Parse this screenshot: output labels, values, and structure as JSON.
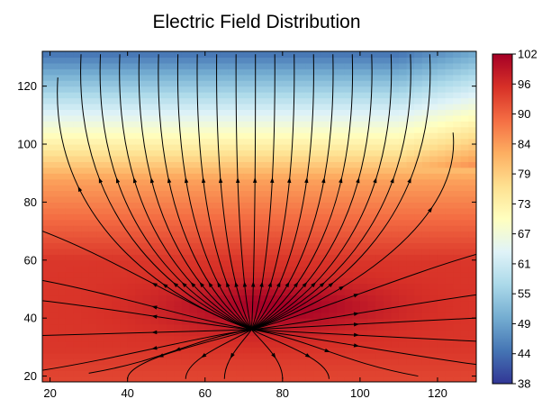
{
  "chart_data": {
    "type": "heatmap",
    "title": "Electric Field Distribution",
    "subtype": "contour-fill-with-streamlines",
    "xlim": [
      18,
      130
    ],
    "ylim": [
      18,
      132
    ],
    "x_ticks": [
      "20",
      "40",
      "60",
      "80",
      "100",
      "120"
    ],
    "y_ticks": [
      "20",
      "40",
      "60",
      "80",
      "100",
      "120"
    ],
    "colorbar": {
      "min": 38,
      "max": 102,
      "tick_labels": [
        "38",
        "44",
        "49",
        "55",
        "61",
        "67",
        "73",
        "79",
        "84",
        "90",
        "96",
        "102"
      ],
      "colors": [
        "#313695",
        "#4575b4",
        "#74add1",
        "#abd9e9",
        "#e0f3f8",
        "#ffffbf",
        "#fee090",
        "#fdae61",
        "#f46d43",
        "#d73027",
        "#a50026"
      ]
    },
    "field_source": {
      "x": 72,
      "y": 36
    },
    "hot_spot": {
      "x": 78,
      "y": 44,
      "value": 102
    },
    "grid": false
  }
}
